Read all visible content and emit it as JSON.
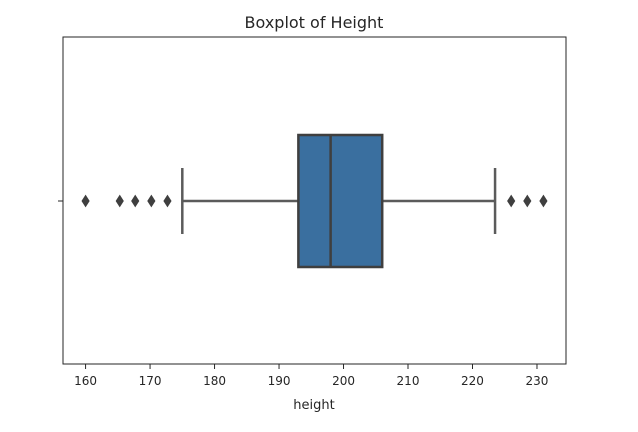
{
  "chart_data": {
    "type": "boxplot",
    "title": "Boxplot of Height",
    "xlabel": "height",
    "ylabel": "",
    "orientation": "horizontal",
    "xlim": [
      156.5,
      234.5
    ],
    "xticks": [
      160,
      170,
      180,
      190,
      200,
      210,
      220,
      230
    ],
    "box": {
      "whisker_low": 175,
      "q1": 193,
      "median": 198,
      "q3": 206,
      "whisker_high": 223.5
    },
    "outliers": [
      160,
      165.3,
      167.7,
      170.2,
      172.7,
      226,
      228.5,
      231
    ],
    "grid": false,
    "colors": {
      "box_fill": "#3a6f9f",
      "box_edge": "#3f3f3f",
      "whisker": "#5b5b5b",
      "outlier": "#3f3f3f",
      "axes": "#262626"
    }
  }
}
